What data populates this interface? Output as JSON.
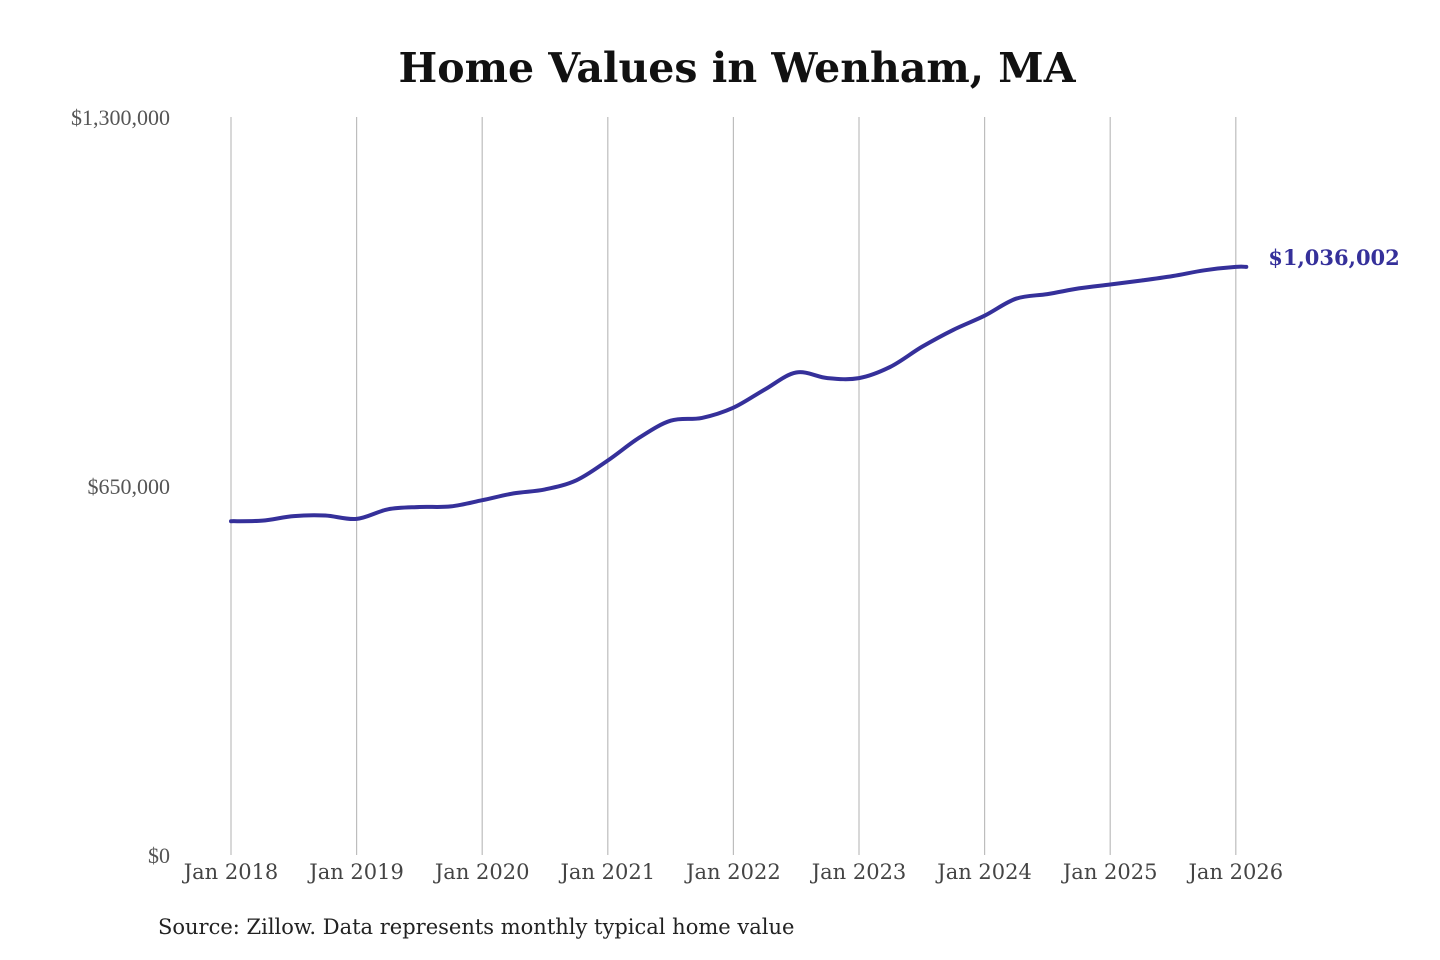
{
  "chart_data": {
    "type": "line",
    "title": "Home Values in Wenham, MA",
    "xlabel": "",
    "ylabel": "",
    "ylim": [
      0,
      1300000
    ],
    "y_ticks": [
      {
        "value": 0,
        "label": "$0"
      },
      {
        "value": 650000,
        "label": "$650,000"
      },
      {
        "value": 1300000,
        "label": "$1,300,000"
      }
    ],
    "x_ticks": [
      {
        "date": "2018-01",
        "label": "Jan 2018"
      },
      {
        "date": "2019-01",
        "label": "Jan 2019"
      },
      {
        "date": "2020-01",
        "label": "Jan 2020"
      },
      {
        "date": "2021-01",
        "label": "Jan 2021"
      },
      {
        "date": "2022-01",
        "label": "Jan 2022"
      },
      {
        "date": "2023-01",
        "label": "Jan 2023"
      },
      {
        "date": "2024-01",
        "label": "Jan 2024"
      },
      {
        "date": "2025-01",
        "label": "Jan 2025"
      },
      {
        "date": "2026-01",
        "label": "Jan 2026"
      }
    ],
    "grid": "vertical",
    "line_color": "#35309a",
    "series": [
      {
        "x": [
          "2018-01",
          "2018-04",
          "2018-07",
          "2018-10",
          "2019-01",
          "2019-04",
          "2019-07",
          "2019-10",
          "2020-01",
          "2020-04",
          "2020-07",
          "2020-10",
          "2021-01",
          "2021-04",
          "2021-07",
          "2021-10",
          "2022-01",
          "2022-04",
          "2022-07",
          "2022-10",
          "2023-01",
          "2023-04",
          "2023-07",
          "2023-10",
          "2024-01",
          "2024-04",
          "2024-07",
          "2024-10",
          "2025-01",
          "2025-04",
          "2025-07",
          "2025-10",
          "2026-01",
          "2026-02"
        ],
        "y": [
          588000,
          589000,
          597000,
          598000,
          592000,
          609000,
          613000,
          614000,
          625000,
          637000,
          644000,
          660000,
          695000,
          735000,
          765000,
          770000,
          788000,
          820000,
          850000,
          840000,
          840000,
          860000,
          895000,
          925000,
          950000,
          980000,
          988000,
          998000,
          1005000,
          1012000,
          1020000,
          1030000,
          1036000,
          1036002
        ]
      }
    ],
    "annotations": [
      {
        "text": "$1,036,002",
        "at_date": "2026-02",
        "value": 1036002
      }
    ],
    "source": "Source: Zillow. Data represents monthly typical home value"
  }
}
